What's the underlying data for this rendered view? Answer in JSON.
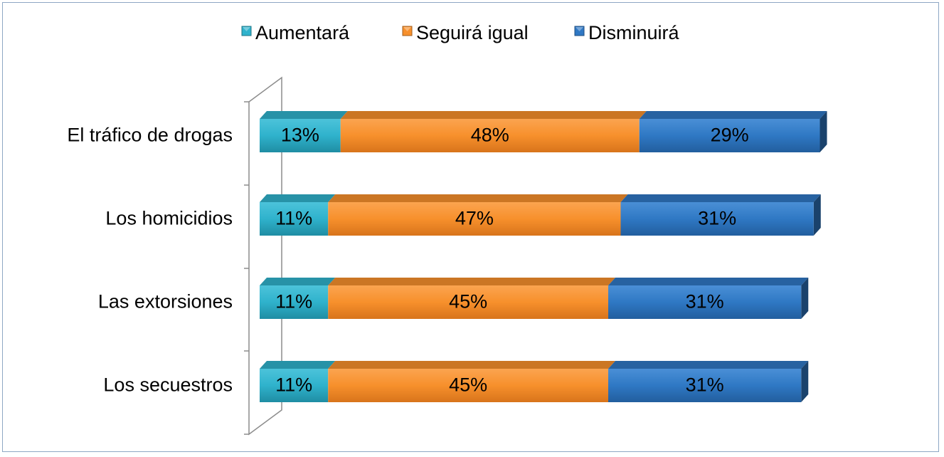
{
  "chart_data": {
    "type": "bar",
    "orientation": "horizontal",
    "stacked": true,
    "style": "3d",
    "categories": [
      "El tráfico de drogas",
      "Los homicidios",
      "Las extorsiones",
      "Los secuestros"
    ],
    "series": [
      {
        "name": "Aumentará",
        "values": [
          13,
          11,
          11,
          11
        ],
        "labels": [
          "13%",
          "11%",
          "11%",
          "11%"
        ],
        "color": "#2fb2cc"
      },
      {
        "name": "Seguirá igual",
        "values": [
          48,
          47,
          45,
          45
        ],
        "labels": [
          "48%",
          "47%",
          "45%",
          "45%"
        ],
        "color": "#f7902c"
      },
      {
        "name": "Disminuirá",
        "values": [
          29,
          31,
          31,
          31
        ],
        "labels": [
          "29%",
          "31%",
          "31%",
          "31%"
        ],
        "color": "#2f78c4"
      }
    ],
    "xlim": [
      0,
      100
    ],
    "legend_position": "top",
    "grid": false
  }
}
